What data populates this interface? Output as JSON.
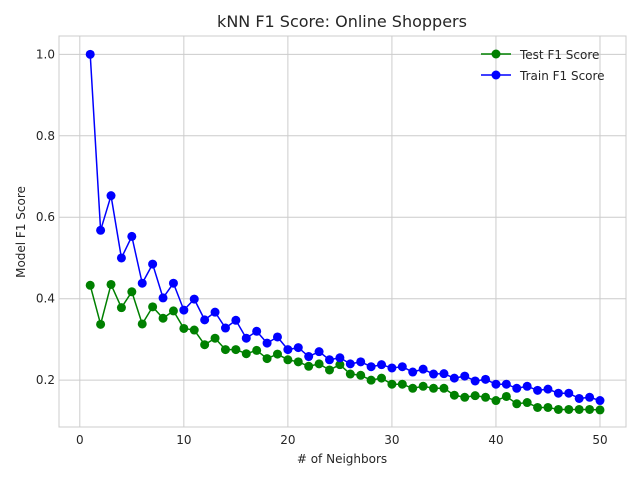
{
  "chart_data": {
    "type": "line",
    "title": "kNN F1 Score: Online Shoppers",
    "xlabel": "# of Neighbors",
    "ylabel": "Model F1 Score",
    "xlim": [
      -2,
      52.5
    ],
    "ylim": [
      0.085,
      1.045
    ],
    "xticks": [
      0,
      10,
      20,
      30,
      40,
      50
    ],
    "yticks": [
      0.2,
      0.4,
      0.6,
      0.8,
      1.0
    ],
    "xtick_labels": [
      "0",
      "10",
      "20",
      "30",
      "40",
      "50"
    ],
    "ytick_labels": [
      "0.2",
      "0.4",
      "0.6",
      "0.8",
      "1.0"
    ],
    "grid": true,
    "legend_position": "top-right",
    "x": [
      1,
      2,
      3,
      4,
      5,
      6,
      7,
      8,
      9,
      10,
      11,
      12,
      13,
      14,
      15,
      16,
      17,
      18,
      19,
      20,
      21,
      22,
      23,
      24,
      25,
      26,
      27,
      28,
      29,
      30,
      31,
      32,
      33,
      34,
      35,
      36,
      37,
      38,
      39,
      40,
      41,
      42,
      43,
      44,
      45,
      46,
      47,
      48,
      49,
      50
    ],
    "series": [
      {
        "name": "Test F1 Score",
        "color": "#008000",
        "values": [
          0.433,
          0.337,
          0.435,
          0.378,
          0.417,
          0.338,
          0.38,
          0.352,
          0.37,
          0.327,
          0.323,
          0.287,
          0.303,
          0.275,
          0.275,
          0.265,
          0.273,
          0.253,
          0.264,
          0.25,
          0.245,
          0.234,
          0.24,
          0.225,
          0.238,
          0.215,
          0.212,
          0.2,
          0.205,
          0.19,
          0.19,
          0.18,
          0.185,
          0.18,
          0.18,
          0.163,
          0.158,
          0.162,
          0.158,
          0.15,
          0.16,
          0.142,
          0.145,
          0.133,
          0.133,
          0.128,
          0.128,
          0.128,
          0.128,
          0.127
        ]
      },
      {
        "name": "Train F1 Score",
        "color": "#0000ff",
        "values": [
          1.0,
          0.568,
          0.653,
          0.5,
          0.553,
          0.438,
          0.485,
          0.402,
          0.438,
          0.372,
          0.399,
          0.348,
          0.367,
          0.328,
          0.347,
          0.303,
          0.32,
          0.291,
          0.306,
          0.275,
          0.28,
          0.258,
          0.27,
          0.25,
          0.255,
          0.24,
          0.245,
          0.233,
          0.238,
          0.23,
          0.233,
          0.22,
          0.227,
          0.215,
          0.216,
          0.205,
          0.21,
          0.198,
          0.202,
          0.19,
          0.19,
          0.18,
          0.185,
          0.175,
          0.178,
          0.168,
          0.168,
          0.155,
          0.158,
          0.15
        ]
      }
    ]
  }
}
